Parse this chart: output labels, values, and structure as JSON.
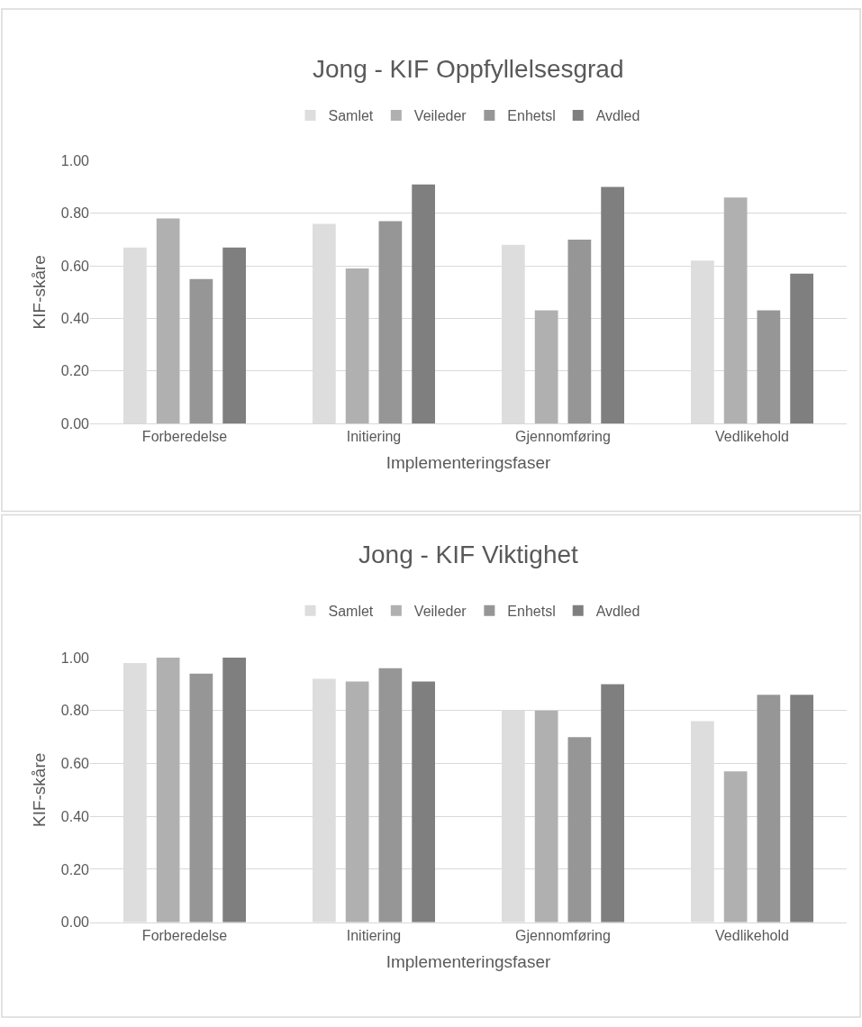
{
  "chart_data": [
    {
      "type": "bar",
      "title": "Jong - KIF Oppfyllelsesgrad",
      "xlabel": "Implementeringsfaser",
      "ylabel": "KIF-skåre",
      "categories": [
        "Forberedelse",
        "Initiering",
        "Gjennomføring",
        "Vedlikehold"
      ],
      "series": [
        {
          "name": "Samlet",
          "color": "#dddddd",
          "values": [
            0.67,
            0.76,
            0.68,
            0.62
          ]
        },
        {
          "name": "Veileder",
          "color": "#b0b0b0",
          "values": [
            0.78,
            0.59,
            0.43,
            0.86
          ]
        },
        {
          "name": "Enhetsl",
          "color": "#969696",
          "values": [
            0.55,
            0.77,
            0.7,
            0.43
          ]
        },
        {
          "name": "Avdled",
          "color": "#7f7f7f",
          "values": [
            0.67,
            0.91,
            0.9,
            0.57
          ]
        }
      ],
      "ylim": [
        0,
        1
      ],
      "yticks": [
        {
          "value": 0,
          "label": "0.00"
        },
        {
          "value": 0.2,
          "label": "0.20"
        },
        {
          "value": 0.4,
          "label": "0.40"
        },
        {
          "value": 0.6,
          "label": "0.60"
        },
        {
          "value": 0.8,
          "label": "0.80"
        },
        {
          "value": 1,
          "label": "1.00"
        }
      ],
      "grid": "y",
      "legend": "top"
    },
    {
      "type": "bar",
      "title": "Jong - KIF Viktighet",
      "xlabel": "Implementeringsfaser",
      "ylabel": "KIF-skåre",
      "categories": [
        "Forberedelse",
        "Initiering",
        "Gjennomføring",
        "Vedlikehold"
      ],
      "series": [
        {
          "name": "Samlet",
          "color": "#dddddd",
          "values": [
            0.98,
            0.92,
            0.8,
            0.76
          ]
        },
        {
          "name": "Veileder",
          "color": "#b0b0b0",
          "values": [
            1.0,
            0.91,
            0.8,
            0.57
          ]
        },
        {
          "name": "Enhetsl",
          "color": "#969696",
          "values": [
            0.94,
            0.96,
            0.7,
            0.86
          ]
        },
        {
          "name": "Avdled",
          "color": "#7f7f7f",
          "values": [
            1.0,
            0.91,
            0.9,
            0.86
          ]
        }
      ],
      "ylim": [
        0,
        1
      ],
      "yticks": [
        {
          "value": 0,
          "label": "0.00"
        },
        {
          "value": 0.2,
          "label": "0.20"
        },
        {
          "value": 0.4,
          "label": "0.40"
        },
        {
          "value": 0.6,
          "label": "0.60"
        },
        {
          "value": 0.8,
          "label": "0.80"
        },
        {
          "value": 1,
          "label": "1.00"
        }
      ],
      "grid": "y",
      "legend": "top"
    }
  ]
}
